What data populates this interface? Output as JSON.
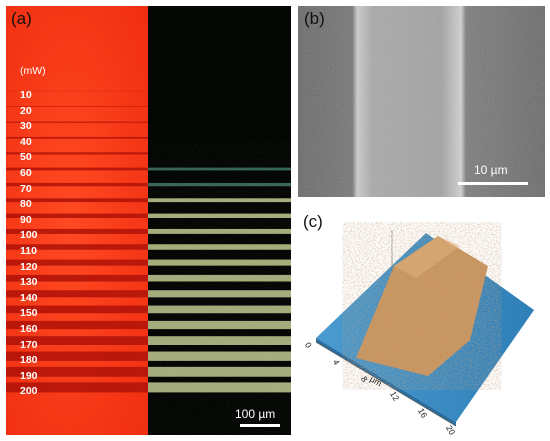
{
  "panel_a": {
    "label": "(a)",
    "unit": "(mW)",
    "powers": [
      "10",
      "20",
      "30",
      "40",
      "50",
      "60",
      "70",
      "80",
      "90",
      "100",
      "110",
      "120",
      "130",
      "140",
      "150",
      "160",
      "170",
      "180",
      "190",
      "200"
    ],
    "scalebar": "100 µm"
  },
  "panel_b": {
    "label": "(b)",
    "scalebar": "10 µm"
  },
  "panel_c": {
    "label": "(c)",
    "axis_unit": "µm",
    "x_ticks": [
      "0",
      "4",
      "8",
      "12",
      "16",
      "20"
    ]
  },
  "colors": {
    "optical_bg": "#ff3b1a",
    "optical_line": "#b4140a",
    "fluor_bg": "#050705",
    "fluor_line": "#b7bf8a",
    "sem_bg": "#8a8a8a",
    "topo_base": "#3d8fc6",
    "topo_ridge": "#c8915f"
  }
}
